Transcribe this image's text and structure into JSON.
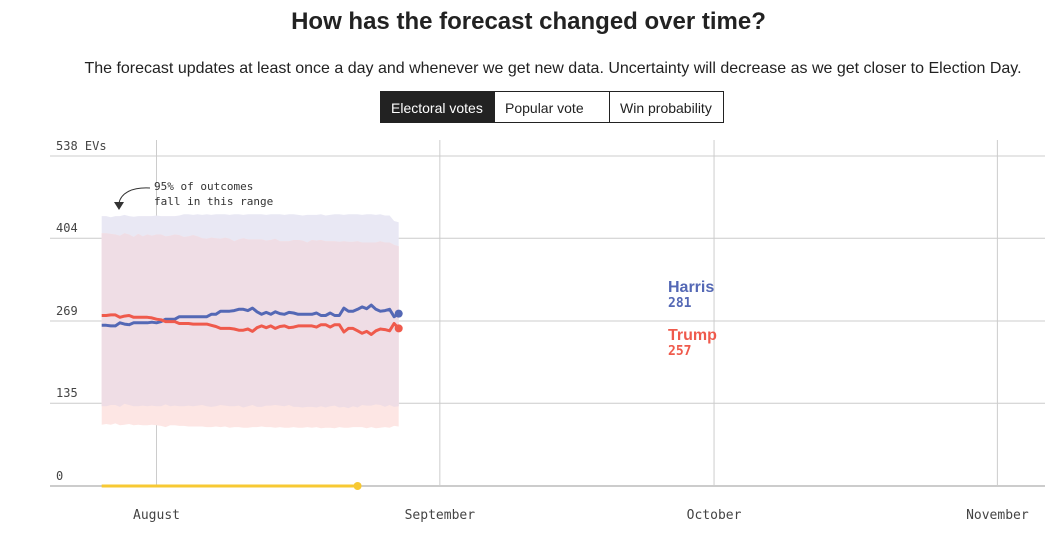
{
  "header": {
    "title": "How has the forecast changed over time?",
    "subtitle": "The forecast updates at least once a day and whenever we get new data. Uncertainty will decrease as we get closer to Election Day."
  },
  "tabs": [
    {
      "label": "Electoral votes",
      "active": true
    },
    {
      "label": "Popular vote",
      "active": false
    },
    {
      "label": "Win probability",
      "active": false
    }
  ],
  "annotation": "95% of outcomes fall in this range",
  "colors": {
    "harris": "#5468b5",
    "trump": "#ef5a4c",
    "harris_band": "#e9e8f4",
    "trump_band": "#fde6e4",
    "overlap_band": "#efdde5",
    "marker": "#f7c933",
    "grid": "#cccccc"
  },
  "chart_data": {
    "type": "line",
    "title": "How has the forecast changed over time?",
    "ylim": [
      0,
      538
    ],
    "y_ticks": [
      {
        "value": 538,
        "label": "538 EVs"
      },
      {
        "value": 404,
        "label": "404"
      },
      {
        "value": 269,
        "label": "269"
      },
      {
        "value": 135,
        "label": "135"
      },
      {
        "value": 0,
        "label": "0"
      }
    ],
    "x_ticks": [
      {
        "day": 0,
        "label": "August"
      },
      {
        "day": 31,
        "label": "September"
      },
      {
        "day": 61,
        "label": "October"
      },
      {
        "day": 92,
        "label": "November"
      }
    ],
    "x_range_days": [
      -6,
      96
    ],
    "tracker_days": [
      -6,
      22
    ],
    "dates_start": "2024-07-25",
    "series": [
      {
        "name": "Harris",
        "end_label": "281",
        "values": [
          262,
          262,
          261,
          261,
          266,
          264,
          263,
          266,
          266,
          266,
          266,
          267,
          266,
          268,
          272,
          272,
          272,
          276,
          276,
          276,
          276,
          276,
          276,
          276,
          280,
          280,
          285,
          285,
          285,
          286,
          288,
          288,
          286,
          290,
          284,
          280,
          283,
          280,
          284,
          281,
          280,
          283,
          282,
          280,
          280,
          280,
          280,
          282,
          278,
          278,
          282,
          278,
          278,
          290,
          285,
          285,
          288,
          292,
          289,
          295,
          288,
          285,
          286,
          288,
          276,
          281
        ],
        "upper": [
          440,
          440,
          438,
          440,
          440,
          442,
          440,
          439,
          440,
          440,
          440,
          440,
          441,
          440,
          440,
          440,
          440,
          441,
          443,
          443,
          442,
          443,
          442,
          443,
          442,
          443,
          443,
          443,
          442,
          443,
          443,
          442,
          443,
          443,
          443,
          443,
          442,
          443,
          443,
          443,
          442,
          443,
          443,
          442,
          441,
          442,
          442,
          442,
          443,
          441,
          442,
          443,
          443,
          442,
          443,
          443,
          443,
          442,
          443,
          443,
          442,
          443,
          441,
          441,
          432,
          430
        ],
        "lower": [
          130,
          130,
          132,
          132,
          129,
          134,
          132,
          130,
          130,
          131,
          130,
          131,
          130,
          130,
          133,
          130,
          131,
          130,
          130,
          131,
          130,
          131,
          132,
          130,
          129,
          130,
          132,
          131,
          130,
          130,
          131,
          128,
          130,
          132,
          129,
          129,
          131,
          131,
          132,
          131,
          130,
          132,
          129,
          129,
          128,
          129,
          129,
          128,
          130,
          128,
          130,
          131,
          128,
          129,
          127,
          130,
          128,
          132,
          131,
          131,
          133,
          132,
          129,
          132,
          129,
          130
        ]
      },
      {
        "name": "Trump",
        "end_label": "257",
        "values": [
          278,
          278,
          279,
          279,
          275,
          277,
          278,
          275,
          275,
          275,
          275,
          274,
          272,
          271,
          268,
          268,
          268,
          265,
          265,
          265,
          264,
          264,
          264,
          264,
          262,
          260,
          257,
          257,
          257,
          256,
          254,
          254,
          256,
          252,
          258,
          261,
          258,
          261,
          257,
          260,
          261,
          258,
          259,
          261,
          261,
          261,
          261,
          259,
          263,
          263,
          259,
          263,
          263,
          251,
          257,
          257,
          253,
          249,
          252,
          247,
          253,
          256,
          255,
          253,
          265,
          257
        ],
        "upper": [
          412,
          412,
          411,
          410,
          408,
          412,
          410,
          406,
          411,
          407,
          410,
          408,
          410,
          410,
          407,
          408,
          410,
          409,
          406,
          407,
          409,
          407,
          404,
          403,
          405,
          404,
          403,
          405,
          403,
          399,
          402,
          404,
          402,
          402,
          402,
          402,
          400,
          401,
          403,
          399,
          399,
          399,
          401,
          401,
          400,
          397,
          401,
          400,
          401,
          399,
          399,
          399,
          398,
          399,
          398,
          398,
          399,
          397,
          397,
          397,
          397,
          399,
          397,
          397,
          393,
          391
        ],
        "lower": [
          100,
          101,
          100,
          102,
          99,
          100,
          101,
          99,
          100,
          99,
          99,
          100,
          99,
          98,
          96,
          99,
          99,
          98,
          98,
          97,
          97,
          97,
          97,
          96,
          96,
          97,
          96,
          97,
          95,
          96,
          96,
          95,
          95,
          96,
          96,
          97,
          96,
          96,
          95,
          96,
          95,
          95,
          96,
          95,
          95,
          96,
          95,
          96,
          94,
          95,
          95,
          94,
          96,
          95,
          95,
          96,
          96,
          96,
          94,
          96,
          94,
          95,
          96,
          95,
          98,
          97
        ]
      }
    ]
  }
}
